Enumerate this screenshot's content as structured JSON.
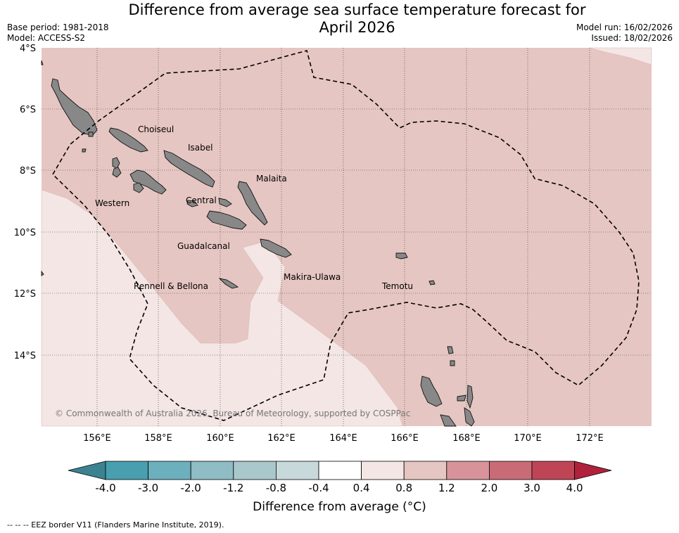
{
  "title": {
    "line1": "Difference from average sea surface temperature forecast for",
    "line2": "April 2026"
  },
  "meta": {
    "base_period": "Base period: 1981-2018",
    "model": "Model: ACCESS-S2",
    "model_run": "Model run: 16/02/2026",
    "issued": "Issued: 18/02/2026"
  },
  "axes": {
    "lat_ticks": [
      "4°S",
      "6°S",
      "8°S",
      "10°S",
      "12°S",
      "14°S"
    ],
    "lon_ticks": [
      "156°E",
      "158°E",
      "160°E",
      "162°E",
      "164°E",
      "166°E",
      "168°E",
      "170°E",
      "172°E"
    ]
  },
  "provinces": [
    "Choiseul",
    "Isabel",
    "Malaita",
    "Western",
    "Central",
    "Guadalcanal",
    "Makira-Ulawa",
    "Rennell & Bellona",
    "Temotu"
  ],
  "copyright": "© Commonwealth of Australia 2026, Bureau of Meteorology, supported by COSPPac",
  "colorbar": {
    "ticks": [
      "-4.0",
      "-3.0",
      "-2.0",
      "-1.2",
      "-0.8",
      "-0.4",
      "0.4",
      "0.8",
      "1.2",
      "2.0",
      "3.0",
      "4.0"
    ],
    "colors": {
      "lt_min": "#3b8391",
      "m4_m3": "#489fb0",
      "m3_m2": "#6cb0be",
      "m2_m12": "#8fbcc5",
      "m12_m08": "#a9c8cc",
      "m08_m04": "#c8d9dc",
      "m04_04": "#ffffff",
      "p04_08": "#f3e6e4",
      "p08_12": "#e6c6c2",
      "p12_20": "#d8939a",
      "p20_30": "#c96b77",
      "p30_40": "#bf4556",
      "gt_max": "#b0223c"
    },
    "label": "Difference from average (°C)"
  },
  "legend_note": "--  --  -- EEZ border V11 (Flanders Marine Institute, 2019)."
}
